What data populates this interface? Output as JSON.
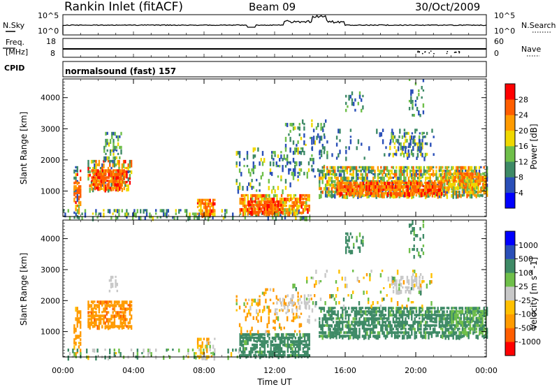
{
  "header": {
    "station": "Rankin Inlet (fitACF)",
    "beam": "Beam 09",
    "date": "30/Oct/2009"
  },
  "left_labels": {
    "nsky": "N.Sky",
    "freq": "Freq.",
    "mhz": "[MHz]",
    "cpid": "CPID"
  },
  "right_labels": {
    "nsearch": "N.Search",
    "nave": "Nave"
  },
  "cpid_text": "normalsound (fast) 157",
  "chart_data": [
    {
      "type": "line",
      "name": "noise",
      "series_labels": [
        "N.Sky",
        "N.Search"
      ],
      "left_ticks": [
        "10^5",
        "10^0"
      ],
      "right_ticks": [
        "10^5",
        "10^0"
      ]
    },
    {
      "type": "line",
      "name": "frequency",
      "ylabel_left": "Freq. [MHz]",
      "left_ticks": [
        "18",
        "8"
      ],
      "right_ticks": [
        "60",
        "0"
      ],
      "right_label": "Nave",
      "frequency_value": 11
    },
    {
      "type": "heatmap",
      "name": "power",
      "ylabel": "Slant Range [km]",
      "xlabel": "Time UT",
      "x_ticks": [
        "00:00",
        "04:00",
        "08:00",
        "12:00",
        "16:00",
        "20:00",
        "00:00"
      ],
      "y_ticks": [
        "1000",
        "2000",
        "3000",
        "4000"
      ],
      "ylim": [
        180,
        4600
      ],
      "colorbar": {
        "label": "Power [dB]",
        "ticks": [
          "28",
          "24",
          "20",
          "16",
          "12",
          "8",
          "4"
        ],
        "colors": [
          "#0000ff",
          "#2a4fb8",
          "#3e8a66",
          "#6fbf4a",
          "#f0d800",
          "#ff9b00",
          "#ff5e00",
          "#ff0000"
        ]
      },
      "regions": [
        {
          "t0": 0.6,
          "t1": 1.0,
          "r0": 200,
          "r1": 1800,
          "v0": 4,
          "v1": 30,
          "d": 0.45
        },
        {
          "t0": 0.6,
          "t1": 1.0,
          "r0": 800,
          "r1": 1300,
          "v0": 22,
          "v1": 30,
          "d": 0.8
        },
        {
          "t0": 1.4,
          "t1": 3.9,
          "r0": 1000,
          "r1": 2000,
          "v0": 6,
          "v1": 30,
          "d": 0.6
        },
        {
          "t0": 1.6,
          "t1": 3.5,
          "r0": 1100,
          "r1": 1700,
          "v0": 22,
          "v1": 30,
          "d": 0.85
        },
        {
          "t0": 2.3,
          "t1": 3.3,
          "r0": 2100,
          "r1": 2900,
          "v0": 4,
          "v1": 20,
          "d": 0.4
        },
        {
          "t0": 0.0,
          "t1": 14.0,
          "r0": 180,
          "r1": 420,
          "v0": 4,
          "v1": 18,
          "d": 0.35
        },
        {
          "t0": 7.6,
          "t1": 8.6,
          "r0": 200,
          "r1": 750,
          "v0": 18,
          "v1": 30,
          "d": 0.8
        },
        {
          "t0": 10.0,
          "t1": 14.0,
          "r0": 250,
          "r1": 900,
          "v0": 14,
          "v1": 30,
          "d": 0.75
        },
        {
          "t0": 10.5,
          "t1": 12.5,
          "r0": 300,
          "r1": 700,
          "v0": 22,
          "v1": 30,
          "d": 0.85
        },
        {
          "t0": 9.8,
          "t1": 13.5,
          "r0": 1000,
          "r1": 2400,
          "v0": 4,
          "v1": 20,
          "d": 0.18
        },
        {
          "t0": 12.5,
          "t1": 15.0,
          "r0": 1500,
          "r1": 3300,
          "v0": 4,
          "v1": 18,
          "d": 0.2
        },
        {
          "t0": 14.5,
          "t1": 24.0,
          "r0": 800,
          "r1": 1800,
          "v0": 6,
          "v1": 26,
          "d": 0.75
        },
        {
          "t0": 15.5,
          "t1": 21.5,
          "r0": 950,
          "r1": 1300,
          "v0": 20,
          "v1": 30,
          "d": 0.85
        },
        {
          "t0": 21.5,
          "t1": 24.0,
          "r0": 1100,
          "r1": 1600,
          "v0": 14,
          "v1": 28,
          "d": 0.8
        },
        {
          "t0": 18.5,
          "t1": 20.6,
          "r0": 2200,
          "r1": 2900,
          "v0": 4,
          "v1": 20,
          "d": 0.45
        },
        {
          "t0": 16.0,
          "t1": 17.0,
          "r0": 3600,
          "r1": 4200,
          "v0": 4,
          "v1": 14,
          "d": 0.3
        },
        {
          "t0": 19.6,
          "t1": 20.4,
          "r0": 3400,
          "r1": 4600,
          "v0": 4,
          "v1": 14,
          "d": 0.25
        },
        {
          "t0": 14.0,
          "t1": 21.0,
          "r0": 2000,
          "r1": 3000,
          "v0": 4,
          "v1": 10,
          "d": 0.1
        }
      ]
    },
    {
      "type": "heatmap",
      "name": "velocity",
      "ylabel": "Slant Range [km]",
      "xlabel": "Time UT",
      "x_ticks": [
        "00:00",
        "04:00",
        "08:00",
        "12:00",
        "16:00",
        "20:00",
        "00:00"
      ],
      "y_ticks": [
        "1000",
        "2000",
        "3000",
        "4000"
      ],
      "ylim": [
        180,
        4600
      ],
      "colorbar": {
        "label": "Velocity [m s^-1]",
        "ticks": [
          "1000",
          "500",
          "100",
          "25",
          "-25",
          "-100",
          "-500",
          "-1000"
        ],
        "colors": [
          "#ff0000",
          "#ff5e00",
          "#ff9b00",
          "#ffc000",
          "#c8c8c8",
          "#6fbf4a",
          "#3e8a66",
          "#2a4fb8",
          "#0000ff"
        ]
      },
      "regions": [
        {
          "t0": 0.6,
          "t1": 1.0,
          "r0": 250,
          "r1": 1800,
          "v0": -300,
          "v1": -80,
          "d": 0.5
        },
        {
          "t0": 1.4,
          "t1": 3.9,
          "r0": 1100,
          "r1": 2000,
          "v0": -600,
          "v1": -150,
          "d": 0.75
        },
        {
          "t0": 0.0,
          "t1": 10.0,
          "r0": 180,
          "r1": 450,
          "v0": -40,
          "v1": 150,
          "d": 0.25
        },
        {
          "t0": 2.6,
          "t1": 3.1,
          "r0": 2200,
          "r1": 2800,
          "v0": -20,
          "v1": 20,
          "d": 0.3
        },
        {
          "t0": 7.6,
          "t1": 8.6,
          "r0": 200,
          "r1": 800,
          "v0": -200,
          "v1": 50,
          "d": 0.5
        },
        {
          "t0": 10.0,
          "t1": 14.0,
          "r0": 250,
          "r1": 950,
          "v0": 90,
          "v1": 300,
          "d": 0.75
        },
        {
          "t0": 9.8,
          "t1": 13.5,
          "r0": 1000,
          "r1": 2400,
          "v0": -400,
          "v1": 60,
          "d": 0.2
        },
        {
          "t0": 12.0,
          "t1": 14.5,
          "r0": 1300,
          "r1": 2200,
          "v0": -20,
          "v1": 20,
          "d": 0.2
        },
        {
          "t0": 14.5,
          "t1": 24.0,
          "r0": 800,
          "r1": 1800,
          "v0": 80,
          "v1": 250,
          "d": 0.72
        },
        {
          "t0": 22.0,
          "t1": 24.0,
          "r0": 1000,
          "r1": 1700,
          "v0": 30,
          "v1": 120,
          "d": 0.5
        },
        {
          "t0": 18.6,
          "t1": 20.4,
          "r0": 2300,
          "r1": 2800,
          "v0": -20,
          "v1": 20,
          "d": 0.4
        },
        {
          "t0": 16.0,
          "t1": 17.0,
          "r0": 3600,
          "r1": 4200,
          "v0": 80,
          "v1": 250,
          "d": 0.3
        },
        {
          "t0": 19.6,
          "t1": 20.4,
          "r0": 3400,
          "r1": 4600,
          "v0": 80,
          "v1": 250,
          "d": 0.25
        },
        {
          "t0": 13.0,
          "t1": 21.0,
          "r0": 1800,
          "r1": 3000,
          "v0": -150,
          "v1": 120,
          "d": 0.1
        }
      ]
    }
  ]
}
